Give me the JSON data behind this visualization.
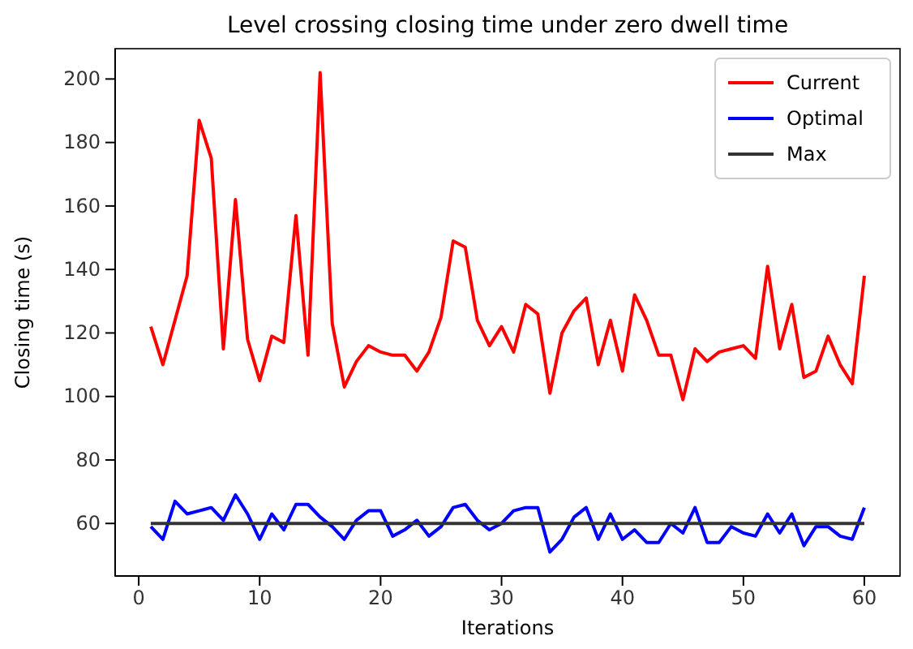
{
  "chart_data": {
    "type": "line",
    "title": "Level crossing closing time under zero dwell time",
    "xlabel": "Iterations",
    "ylabel": "Closing time (s)",
    "x": [
      1,
      2,
      3,
      4,
      5,
      6,
      7,
      8,
      9,
      10,
      11,
      12,
      13,
      14,
      15,
      16,
      17,
      18,
      19,
      20,
      21,
      22,
      23,
      24,
      25,
      26,
      27,
      28,
      29,
      30,
      31,
      32,
      33,
      34,
      35,
      36,
      37,
      38,
      39,
      40,
      41,
      42,
      43,
      44,
      45,
      46,
      47,
      48,
      49,
      50,
      51,
      52,
      53,
      54,
      55,
      56,
      57,
      58,
      59,
      60
    ],
    "series": [
      {
        "name": "Current",
        "color": "#ff0000",
        "values": [
          122,
          110,
          124,
          138,
          187,
          175,
          115,
          162,
          118,
          105,
          119,
          117,
          157,
          113,
          202,
          123,
          103,
          111,
          116,
          114,
          113,
          113,
          108,
          114,
          125,
          149,
          147,
          124,
          116,
          122,
          114,
          129,
          126,
          101,
          120,
          127,
          131,
          110,
          124,
          108,
          132,
          124,
          113,
          113,
          99,
          115,
          111,
          114,
          115,
          116,
          112,
          141,
          115,
          129,
          106,
          108,
          119,
          110,
          104,
          138
        ]
      },
      {
        "name": "Optimal",
        "color": "#0000ff",
        "values": [
          59,
          55,
          67,
          63,
          64,
          65,
          61,
          69,
          63,
          55,
          63,
          58,
          66,
          66,
          62,
          59,
          55,
          61,
          64,
          64,
          56,
          58,
          61,
          56,
          59,
          65,
          66,
          61,
          58,
          60,
          64,
          65,
          65,
          51,
          55,
          62,
          65,
          55,
          63,
          55,
          58,
          54,
          54,
          60,
          57,
          65,
          54,
          54,
          59,
          57,
          56,
          63,
          57,
          63,
          53,
          59,
          59,
          56,
          55,
          65
        ]
      },
      {
        "name": "Max",
        "color": "#333333",
        "values": [
          60,
          60,
          60,
          60,
          60,
          60,
          60,
          60,
          60,
          60,
          60,
          60,
          60,
          60,
          60,
          60,
          60,
          60,
          60,
          60,
          60,
          60,
          60,
          60,
          60,
          60,
          60,
          60,
          60,
          60,
          60,
          60,
          60,
          60,
          60,
          60,
          60,
          60,
          60,
          60,
          60,
          60,
          60,
          60,
          60,
          60,
          60,
          60,
          60,
          60,
          60,
          60,
          60,
          60,
          60,
          60,
          60,
          60,
          60,
          60
        ]
      }
    ],
    "xlim": [
      -1.95,
      62.95
    ],
    "xticks": [
      0,
      10,
      20,
      30,
      40,
      50,
      60
    ],
    "ylim": [
      43.45,
      209.55
    ],
    "yticks": [
      60,
      80,
      100,
      120,
      140,
      160,
      180,
      200
    ],
    "legend": "top right",
    "marker": "none",
    "line_style": "solid",
    "grid": false
  }
}
